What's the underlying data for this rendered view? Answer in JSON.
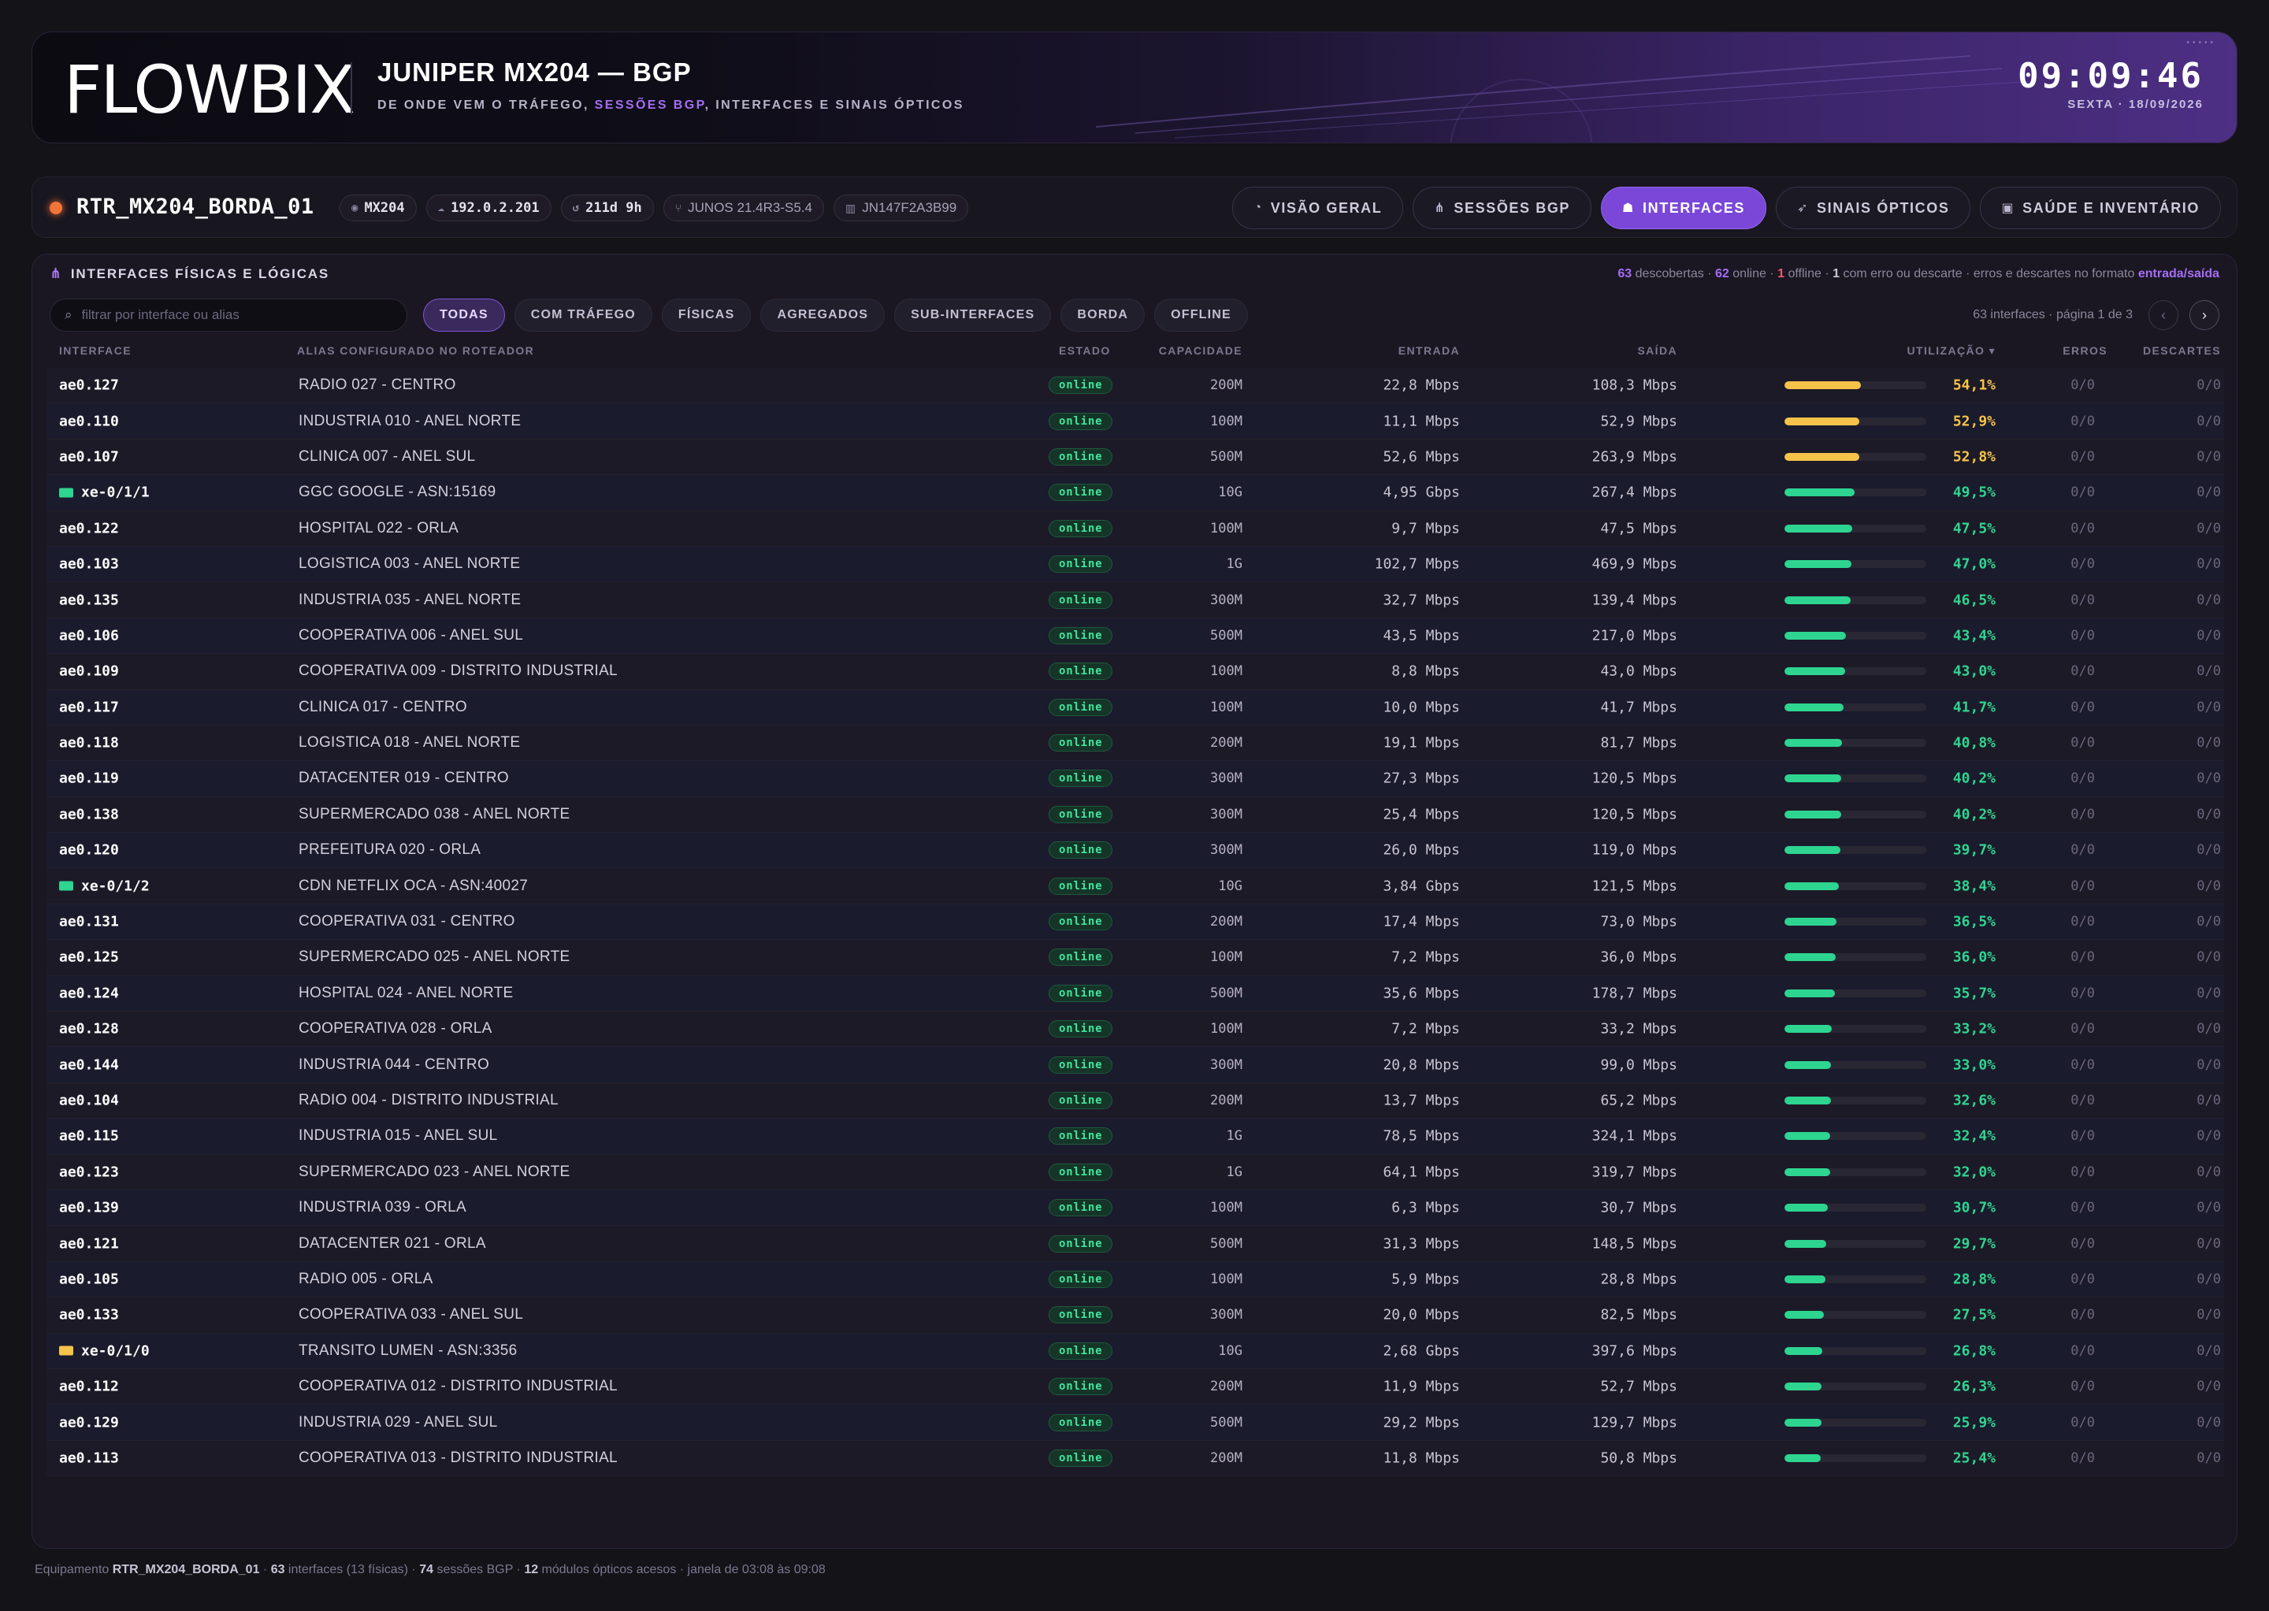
{
  "brand": {
    "logo_text": "FLOWBIX"
  },
  "header": {
    "title": "JUNIPER MX204 — BGP",
    "subtitle_pre": "DE ONDE VEM O TRÁFEGO, ",
    "subtitle_hl": "SESSÕES BGP",
    "subtitle_post": ", INTERFACES E SINAIS ÓPTICOS",
    "time": "09:09:46",
    "date": "SEXTA · 18/09/2026"
  },
  "device": {
    "name": "RTR_MX204_BORDA_01",
    "model": "MX204",
    "ip": "192.0.2.201",
    "uptime": "211d 9h",
    "os": "JUNOS 21.4R3-S5.4",
    "serial": "JN147F2A3B99"
  },
  "nav": {
    "tabs": [
      {
        "label": "VISÃO GERAL",
        "icon": "gauge-icon",
        "glyph": "◔",
        "active": false
      },
      {
        "label": "SESSÕES BGP",
        "icon": "network-icon",
        "glyph": "⋔",
        "active": false
      },
      {
        "label": "INTERFACES",
        "icon": "ethernet-icon",
        "glyph": "☗",
        "active": true
      },
      {
        "label": "SINAIS ÓPTICOS",
        "icon": "send-icon",
        "glyph": "➶",
        "active": false
      },
      {
        "label": "SAÚDE E INVENTÁRIO",
        "icon": "chip-icon",
        "glyph": "▣",
        "active": false
      }
    ]
  },
  "panel": {
    "title": "INTERFACES FÍSICAS E LÓGICAS",
    "summary": {
      "discovered": "63",
      "discovered_label": " descobertas · ",
      "online": "62",
      "online_label": " online · ",
      "offline": "1",
      "offline_label": " offline · ",
      "errors": "1",
      "errors_label": " com erro ou descarte · erros e descartes no formato ",
      "format": "entrada/saída"
    },
    "search_placeholder": "filtrar por interface ou alias",
    "filters": [
      "TODAS",
      "COM TRÁFEGO",
      "FÍSICAS",
      "AGREGADOS",
      "SUB-INTERFACES",
      "BORDA",
      "OFFLINE"
    ],
    "active_filter": "TODAS",
    "pager_text": "63 interfaces · página 1 de 3"
  },
  "table": {
    "columns": {
      "interface": "INTERFACE",
      "alias": "ALIAS CONFIGURADO NO ROTEADOR",
      "state": "ESTADO",
      "capacity": "CAPACIDADE",
      "in": "ENTRADA",
      "out": "SAÍDA",
      "util": "UTILIZAÇÃO ▾",
      "errors": "ERROS",
      "drops": "DESCARTES"
    },
    "rows": [
      {
        "if": "ae0.127",
        "alias": "RADIO 027 - CENTRO",
        "state": "online",
        "cap": "200M",
        "in": "22,8 Mbps",
        "out": "108,3 Mbps",
        "util": 54.1,
        "util_label": "54,1%",
        "err": "0/0",
        "drop": "0/0"
      },
      {
        "if": "ae0.110",
        "alias": "INDUSTRIA 010 - ANEL NORTE",
        "state": "online",
        "cap": "100M",
        "in": "11,1 Mbps",
        "out": "52,9 Mbps",
        "util": 52.9,
        "util_label": "52,9%",
        "err": "0/0",
        "drop": "0/0"
      },
      {
        "if": "ae0.107",
        "alias": "CLINICA 007 - ANEL SUL",
        "state": "online",
        "cap": "500M",
        "in": "52,6 Mbps",
        "out": "263,9 Mbps",
        "util": 52.8,
        "util_label": "52,8%",
        "err": "0/0",
        "drop": "0/0"
      },
      {
        "if": "xe-0/1/1",
        "icon": "peering-icon",
        "alias": "GGC GOOGLE - ASN:15169",
        "state": "online",
        "cap": "10G",
        "in": "4,95 Gbps",
        "out": "267,4 Mbps",
        "util": 49.5,
        "util_label": "49,5%",
        "err": "0/0",
        "drop": "0/0"
      },
      {
        "if": "ae0.122",
        "alias": "HOSPITAL 022 - ORLA",
        "state": "online",
        "cap": "100M",
        "in": "9,7 Mbps",
        "out": "47,5 Mbps",
        "util": 47.5,
        "util_label": "47,5%",
        "err": "0/0",
        "drop": "0/0"
      },
      {
        "if": "ae0.103",
        "alias": "LOGISTICA 003 - ANEL NORTE",
        "state": "online",
        "cap": "1G",
        "in": "102,7 Mbps",
        "out": "469,9 Mbps",
        "util": 47.0,
        "util_label": "47,0%",
        "err": "0/0",
        "drop": "0/0"
      },
      {
        "if": "ae0.135",
        "alias": "INDUSTRIA 035 - ANEL NORTE",
        "state": "online",
        "cap": "300M",
        "in": "32,7 Mbps",
        "out": "139,4 Mbps",
        "util": 46.5,
        "util_label": "46,5%",
        "err": "0/0",
        "drop": "0/0"
      },
      {
        "if": "ae0.106",
        "alias": "COOPERATIVA 006 - ANEL SUL",
        "state": "online",
        "cap": "500M",
        "in": "43,5 Mbps",
        "out": "217,0 Mbps",
        "util": 43.4,
        "util_label": "43,4%",
        "err": "0/0",
        "drop": "0/0"
      },
      {
        "if": "ae0.109",
        "alias": "COOPERATIVA 009 - DISTRITO INDUSTRIAL",
        "state": "online",
        "cap": "100M",
        "in": "8,8 Mbps",
        "out": "43,0 Mbps",
        "util": 43.0,
        "util_label": "43,0%",
        "err": "0/0",
        "drop": "0/0"
      },
      {
        "if": "ae0.117",
        "alias": "CLINICA 017 - CENTRO",
        "state": "online",
        "cap": "100M",
        "in": "10,0 Mbps",
        "out": "41,7 Mbps",
        "util": 41.7,
        "util_label": "41,7%",
        "err": "0/0",
        "drop": "0/0"
      },
      {
        "if": "ae0.118",
        "alias": "LOGISTICA 018 - ANEL NORTE",
        "state": "online",
        "cap": "200M",
        "in": "19,1 Mbps",
        "out": "81,7 Mbps",
        "util": 40.8,
        "util_label": "40,8%",
        "err": "0/0",
        "drop": "0/0"
      },
      {
        "if": "ae0.119",
        "alias": "DATACENTER 019 - CENTRO",
        "state": "online",
        "cap": "300M",
        "in": "27,3 Mbps",
        "out": "120,5 Mbps",
        "util": 40.2,
        "util_label": "40,2%",
        "err": "0/0",
        "drop": "0/0"
      },
      {
        "if": "ae0.138",
        "alias": "SUPERMERCADO 038 - ANEL NORTE",
        "state": "online",
        "cap": "300M",
        "in": "25,4 Mbps",
        "out": "120,5 Mbps",
        "util": 40.2,
        "util_label": "40,2%",
        "err": "0/0",
        "drop": "0/0"
      },
      {
        "if": "ae0.120",
        "alias": "PREFEITURA 020 - ORLA",
        "state": "online",
        "cap": "300M",
        "in": "26,0 Mbps",
        "out": "119,0 Mbps",
        "util": 39.7,
        "util_label": "39,7%",
        "err": "0/0",
        "drop": "0/0"
      },
      {
        "if": "xe-0/1/2",
        "icon": "peering-icon",
        "alias": "CDN NETFLIX OCA - ASN:40027",
        "state": "online",
        "cap": "10G",
        "in": "3,84 Gbps",
        "out": "121,5 Mbps",
        "util": 38.4,
        "util_label": "38,4%",
        "err": "0/0",
        "drop": "0/0"
      },
      {
        "if": "ae0.131",
        "alias": "COOPERATIVA 031 - CENTRO",
        "state": "online",
        "cap": "200M",
        "in": "17,4 Mbps",
        "out": "73,0 Mbps",
        "util": 36.5,
        "util_label": "36,5%",
        "err": "0/0",
        "drop": "0/0"
      },
      {
        "if": "ae0.125",
        "alias": "SUPERMERCADO 025 - ANEL NORTE",
        "state": "online",
        "cap": "100M",
        "in": "7,2 Mbps",
        "out": "36,0 Mbps",
        "util": 36.0,
        "util_label": "36,0%",
        "err": "0/0",
        "drop": "0/0"
      },
      {
        "if": "ae0.124",
        "alias": "HOSPITAL 024 - ANEL NORTE",
        "state": "online",
        "cap": "500M",
        "in": "35,6 Mbps",
        "out": "178,7 Mbps",
        "util": 35.7,
        "util_label": "35,7%",
        "err": "0/0",
        "drop": "0/0"
      },
      {
        "if": "ae0.128",
        "alias": "COOPERATIVA 028 - ORLA",
        "state": "online",
        "cap": "100M",
        "in": "7,2 Mbps",
        "out": "33,2 Mbps",
        "util": 33.2,
        "util_label": "33,2%",
        "err": "0/0",
        "drop": "0/0"
      },
      {
        "if": "ae0.144",
        "alias": "INDUSTRIA 044 - CENTRO",
        "state": "online",
        "cap": "300M",
        "in": "20,8 Mbps",
        "out": "99,0 Mbps",
        "util": 33.0,
        "util_label": "33,0%",
        "err": "0/0",
        "drop": "0/0"
      },
      {
        "if": "ae0.104",
        "alias": "RADIO 004 - DISTRITO INDUSTRIAL",
        "state": "online",
        "cap": "200M",
        "in": "13,7 Mbps",
        "out": "65,2 Mbps",
        "util": 32.6,
        "util_label": "32,6%",
        "err": "0/0",
        "drop": "0/0"
      },
      {
        "if": "ae0.115",
        "alias": "INDUSTRIA 015 - ANEL SUL",
        "state": "online",
        "cap": "1G",
        "in": "78,5 Mbps",
        "out": "324,1 Mbps",
        "util": 32.4,
        "util_label": "32,4%",
        "err": "0/0",
        "drop": "0/0"
      },
      {
        "if": "ae0.123",
        "alias": "SUPERMERCADO 023 - ANEL NORTE",
        "state": "online",
        "cap": "1G",
        "in": "64,1 Mbps",
        "out": "319,7 Mbps",
        "util": 32.0,
        "util_label": "32,0%",
        "err": "0/0",
        "drop": "0/0"
      },
      {
        "if": "ae0.139",
        "alias": "INDUSTRIA 039 - ORLA",
        "state": "online",
        "cap": "100M",
        "in": "6,3 Mbps",
        "out": "30,7 Mbps",
        "util": 30.7,
        "util_label": "30,7%",
        "err": "0/0",
        "drop": "0/0"
      },
      {
        "if": "ae0.121",
        "alias": "DATACENTER 021 - ORLA",
        "state": "online",
        "cap": "500M",
        "in": "31,3 Mbps",
        "out": "148,5 Mbps",
        "util": 29.7,
        "util_label": "29,7%",
        "err": "0/0",
        "drop": "0/0"
      },
      {
        "if": "ae0.105",
        "alias": "RADIO 005 - ORLA",
        "state": "online",
        "cap": "100M",
        "in": "5,9 Mbps",
        "out": "28,8 Mbps",
        "util": 28.8,
        "util_label": "28,8%",
        "err": "0/0",
        "drop": "0/0"
      },
      {
        "if": "ae0.133",
        "alias": "COOPERATIVA 033 - ANEL SUL",
        "state": "online",
        "cap": "300M",
        "in": "20,0 Mbps",
        "out": "82,5 Mbps",
        "util": 27.5,
        "util_label": "27,5%",
        "err": "0/0",
        "drop": "0/0"
      },
      {
        "if": "xe-0/1/0",
        "icon": "transit-icon",
        "alias": "TRANSITO LUMEN - ASN:3356",
        "state": "online",
        "cap": "10G",
        "in": "2,68 Gbps",
        "out": "397,6 Mbps",
        "util": 26.8,
        "util_label": "26,8%",
        "err": "0/0",
        "drop": "0/0"
      },
      {
        "if": "ae0.112",
        "alias": "COOPERATIVA 012 - DISTRITO INDUSTRIAL",
        "state": "online",
        "cap": "200M",
        "in": "11,9 Mbps",
        "out": "52,7 Mbps",
        "util": 26.3,
        "util_label": "26,3%",
        "err": "0/0",
        "drop": "0/0"
      },
      {
        "if": "ae0.129",
        "alias": "INDUSTRIA 029 - ANEL SUL",
        "state": "online",
        "cap": "500M",
        "in": "29,2 Mbps",
        "out": "129,7 Mbps",
        "util": 25.9,
        "util_label": "25,9%",
        "err": "0/0",
        "drop": "0/0"
      },
      {
        "if": "ae0.113",
        "alias": "COOPERATIVA 013 - DISTRITO INDUSTRIAL",
        "state": "online",
        "cap": "200M",
        "in": "11,8 Mbps",
        "out": "50,8 Mbps",
        "util": 25.4,
        "util_label": "25,4%",
        "err": "0/0",
        "drop": "0/0"
      }
    ]
  },
  "colors": {
    "accent": "#a56df5",
    "util_high": "#f6c34a",
    "util_normal": "#2ed590",
    "online": "#3ee69a",
    "peering": "#2ed590",
    "transit": "#f6c34a"
  },
  "footer": {
    "pre": "Equipamento ",
    "device": "RTR_MX204_BORDA_01",
    "mid1": " · ",
    "interfaces": "63",
    "mid2": " interfaces (13 físicas) · ",
    "sessions": "74",
    "mid3": " sessões BGP · ",
    "optics": "12",
    "post": " módulos ópticos acesos · janela de 03:08 às 09:08"
  }
}
